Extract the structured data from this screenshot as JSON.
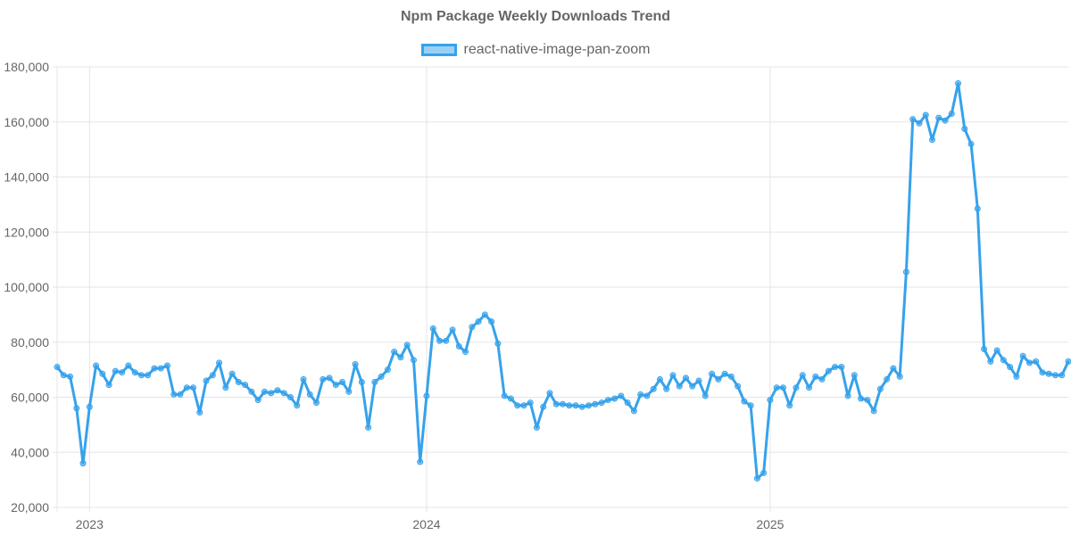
{
  "chart_data": {
    "type": "line",
    "title": "Npm Package Weekly Downloads Trend",
    "xlabel": "",
    "ylabel": "",
    "ylim": [
      20000,
      180000
    ],
    "y_ticks": [
      "20,000",
      "40,000",
      "60,000",
      "80,000",
      "100,000",
      "120,000",
      "140,000",
      "160,000",
      "180,000"
    ],
    "y_tick_values": [
      20000,
      40000,
      60000,
      80000,
      100000,
      120000,
      140000,
      160000,
      180000
    ],
    "x_tick_labels": [
      "2023",
      "2024",
      "2025"
    ],
    "x_tick_indices": [
      5,
      57,
      110
    ],
    "grid": true,
    "legend_position": "top-center",
    "colors": {
      "line": "#36a2eb",
      "fill": "rgba(54,162,235,0.5)",
      "grid": "#e5e5e5",
      "text": "#666666"
    },
    "series": [
      {
        "name": "react-native-image-pan-zoom",
        "values": [
          71000,
          68000,
          67500,
          56000,
          36000,
          56500,
          71500,
          68500,
          64500,
          69500,
          69000,
          71500,
          69000,
          68000,
          68000,
          70500,
          70500,
          71500,
          61000,
          61000,
          63500,
          63500,
          54500,
          66000,
          68000,
          72500,
          63500,
          68500,
          65500,
          64500,
          62000,
          59000,
          62000,
          61500,
          62500,
          61500,
          60000,
          57000,
          66500,
          61000,
          58000,
          66500,
          67000,
          64500,
          65500,
          62000,
          72000,
          65500,
          49000,
          65500,
          67500,
          70000,
          76500,
          74500,
          79000,
          73500,
          36500,
          60500,
          85000,
          80500,
          80500,
          84500,
          78500,
          76500,
          85500,
          87500,
          90000,
          87500,
          79500,
          60500,
          59500,
          57000,
          57000,
          58000,
          49000,
          56500,
          61500,
          57500,
          57500,
          57000,
          57000,
          56500,
          57000,
          57500,
          58000,
          59000,
          59500,
          60500,
          58000,
          55000,
          61000,
          60500,
          63000,
          66500,
          63000,
          68000,
          64000,
          67000,
          64000,
          66000,
          60500,
          68500,
          66500,
          68500,
          67500,
          64000,
          58500,
          57000,
          30500,
          32500,
          59000,
          63500,
          63500,
          57000,
          63500,
          68000,
          63500,
          67500,
          66500,
          69500,
          71000,
          71000,
          60500,
          68000,
          59500,
          59000,
          55000,
          63000,
          66500,
          70500,
          67500,
          105500,
          161000,
          159500,
          162500,
          153500,
          161500,
          160500,
          163000,
          174000,
          157500,
          152000,
          128500,
          77500,
          73000,
          77000,
          73500,
          71000,
          67500,
          75000,
          72500,
          73000,
          69000,
          68500,
          68000,
          68000,
          73000
        ]
      }
    ]
  }
}
